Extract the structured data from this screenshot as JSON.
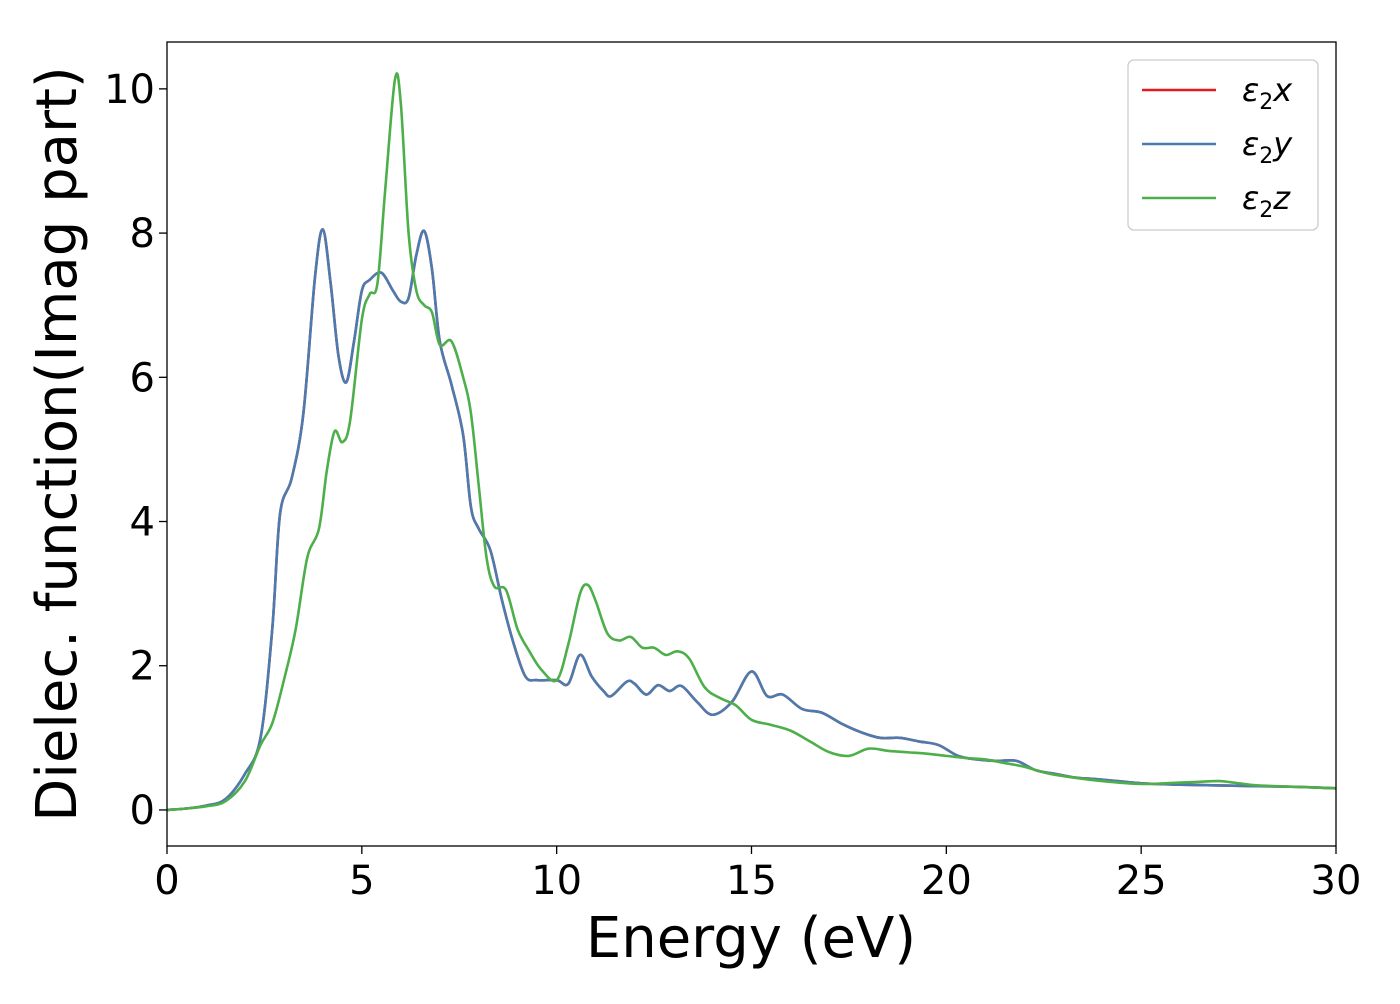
{
  "chart_data": {
    "type": "line",
    "xlabel": "Energy (eV)",
    "ylabel": "Dielec. function(Imag part)",
    "xlim": [
      0,
      30
    ],
    "ylim": [
      -0.5,
      10.65
    ],
    "xticks": [
      0,
      5,
      10,
      15,
      20,
      25,
      30
    ],
    "yticks": [
      0,
      2,
      4,
      6,
      8,
      10
    ],
    "grid": false,
    "legend_position": "top-right",
    "series": [
      {
        "name": "ε2x",
        "legend_main": "ε",
        "legend_sub": "2",
        "legend_suffix": "x",
        "color": "#e41a1c",
        "points": [
          [
            0,
            0
          ],
          [
            0.5,
            0.02
          ],
          [
            1.0,
            0.06
          ],
          [
            1.5,
            0.15
          ],
          [
            2.0,
            0.5
          ],
          [
            2.4,
            1.0
          ],
          [
            2.7,
            2.5
          ],
          [
            2.9,
            4.1
          ],
          [
            3.2,
            4.6
          ],
          [
            3.5,
            5.5
          ],
          [
            3.8,
            7.4
          ],
          [
            4.0,
            8.05
          ],
          [
            4.2,
            7.3
          ],
          [
            4.4,
            6.3
          ],
          [
            4.6,
            5.93
          ],
          [
            4.8,
            6.5
          ],
          [
            5.0,
            7.2
          ],
          [
            5.2,
            7.35
          ],
          [
            5.5,
            7.45
          ],
          [
            5.8,
            7.2
          ],
          [
            6.0,
            7.05
          ],
          [
            6.2,
            7.1
          ],
          [
            6.4,
            7.7
          ],
          [
            6.6,
            8.03
          ],
          [
            6.8,
            7.5
          ],
          [
            7.0,
            6.5
          ],
          [
            7.3,
            5.9
          ],
          [
            7.6,
            5.2
          ],
          [
            7.8,
            4.2
          ],
          [
            8.0,
            3.9
          ],
          [
            8.3,
            3.6
          ],
          [
            8.6,
            2.9
          ],
          [
            8.9,
            2.3
          ],
          [
            9.2,
            1.85
          ],
          [
            9.5,
            1.8
          ],
          [
            10.0,
            1.8
          ],
          [
            10.3,
            1.75
          ],
          [
            10.6,
            2.15
          ],
          [
            10.9,
            1.85
          ],
          [
            11.2,
            1.65
          ],
          [
            11.4,
            1.58
          ],
          [
            11.8,
            1.78
          ],
          [
            12.0,
            1.75
          ],
          [
            12.3,
            1.6
          ],
          [
            12.6,
            1.73
          ],
          [
            12.9,
            1.65
          ],
          [
            13.2,
            1.72
          ],
          [
            13.6,
            1.5
          ],
          [
            14.0,
            1.32
          ],
          [
            14.5,
            1.5
          ],
          [
            15.0,
            1.92
          ],
          [
            15.4,
            1.58
          ],
          [
            15.8,
            1.6
          ],
          [
            16.3,
            1.4
          ],
          [
            16.8,
            1.35
          ],
          [
            17.3,
            1.2
          ],
          [
            17.8,
            1.08
          ],
          [
            18.3,
            1.0
          ],
          [
            18.8,
            1.0
          ],
          [
            19.3,
            0.95
          ],
          [
            19.8,
            0.9
          ],
          [
            20.3,
            0.75
          ],
          [
            20.8,
            0.7
          ],
          [
            21.3,
            0.68
          ],
          [
            21.8,
            0.68
          ],
          [
            22.3,
            0.55
          ],
          [
            22.8,
            0.5
          ],
          [
            23.3,
            0.45
          ],
          [
            24.0,
            0.42
          ],
          [
            25.0,
            0.37
          ],
          [
            26.0,
            0.35
          ],
          [
            27.0,
            0.34
          ],
          [
            28.0,
            0.33
          ],
          [
            29.0,
            0.32
          ],
          [
            30.0,
            0.3
          ]
        ]
      },
      {
        "name": "ε2y",
        "legend_main": "ε",
        "legend_sub": "2",
        "legend_suffix": "y",
        "color": "#4a7cb0",
        "points": [
          [
            0,
            0
          ],
          [
            0.5,
            0.02
          ],
          [
            1.0,
            0.06
          ],
          [
            1.5,
            0.15
          ],
          [
            2.0,
            0.5
          ],
          [
            2.4,
            1.0
          ],
          [
            2.7,
            2.5
          ],
          [
            2.9,
            4.1
          ],
          [
            3.2,
            4.6
          ],
          [
            3.5,
            5.5
          ],
          [
            3.8,
            7.4
          ],
          [
            4.0,
            8.05
          ],
          [
            4.2,
            7.3
          ],
          [
            4.4,
            6.3
          ],
          [
            4.6,
            5.93
          ],
          [
            4.8,
            6.5
          ],
          [
            5.0,
            7.2
          ],
          [
            5.2,
            7.35
          ],
          [
            5.5,
            7.45
          ],
          [
            5.8,
            7.2
          ],
          [
            6.0,
            7.05
          ],
          [
            6.2,
            7.1
          ],
          [
            6.4,
            7.7
          ],
          [
            6.6,
            8.03
          ],
          [
            6.8,
            7.5
          ],
          [
            7.0,
            6.5
          ],
          [
            7.3,
            5.9
          ],
          [
            7.6,
            5.2
          ],
          [
            7.8,
            4.2
          ],
          [
            8.0,
            3.9
          ],
          [
            8.3,
            3.6
          ],
          [
            8.6,
            2.9
          ],
          [
            8.9,
            2.3
          ],
          [
            9.2,
            1.85
          ],
          [
            9.5,
            1.8
          ],
          [
            10.0,
            1.8
          ],
          [
            10.3,
            1.75
          ],
          [
            10.6,
            2.15
          ],
          [
            10.9,
            1.85
          ],
          [
            11.2,
            1.65
          ],
          [
            11.4,
            1.58
          ],
          [
            11.8,
            1.78
          ],
          [
            12.0,
            1.75
          ],
          [
            12.3,
            1.6
          ],
          [
            12.6,
            1.73
          ],
          [
            12.9,
            1.65
          ],
          [
            13.2,
            1.72
          ],
          [
            13.6,
            1.5
          ],
          [
            14.0,
            1.32
          ],
          [
            14.5,
            1.5
          ],
          [
            15.0,
            1.92
          ],
          [
            15.4,
            1.58
          ],
          [
            15.8,
            1.6
          ],
          [
            16.3,
            1.4
          ],
          [
            16.8,
            1.35
          ],
          [
            17.3,
            1.2
          ],
          [
            17.8,
            1.08
          ],
          [
            18.3,
            1.0
          ],
          [
            18.8,
            1.0
          ],
          [
            19.3,
            0.95
          ],
          [
            19.8,
            0.9
          ],
          [
            20.3,
            0.75
          ],
          [
            20.8,
            0.7
          ],
          [
            21.3,
            0.68
          ],
          [
            21.8,
            0.68
          ],
          [
            22.3,
            0.55
          ],
          [
            22.8,
            0.5
          ],
          [
            23.3,
            0.45
          ],
          [
            24.0,
            0.42
          ],
          [
            25.0,
            0.37
          ],
          [
            26.0,
            0.35
          ],
          [
            27.0,
            0.34
          ],
          [
            28.0,
            0.33
          ],
          [
            29.0,
            0.32
          ],
          [
            30.0,
            0.3
          ]
        ]
      },
      {
        "name": "ε2z",
        "legend_main": "ε",
        "legend_sub": "2",
        "legend_suffix": "z",
        "color": "#4daf4a",
        "points": [
          [
            0,
            0
          ],
          [
            0.5,
            0.02
          ],
          [
            1.0,
            0.05
          ],
          [
            1.5,
            0.12
          ],
          [
            2.0,
            0.4
          ],
          [
            2.4,
            0.9
          ],
          [
            2.7,
            1.2
          ],
          [
            3.0,
            1.8
          ],
          [
            3.3,
            2.5
          ],
          [
            3.6,
            3.5
          ],
          [
            3.9,
            3.9
          ],
          [
            4.1,
            4.7
          ],
          [
            4.3,
            5.25
          ],
          [
            4.5,
            5.1
          ],
          [
            4.7,
            5.4
          ],
          [
            5.0,
            6.8
          ],
          [
            5.2,
            7.15
          ],
          [
            5.4,
            7.3
          ],
          [
            5.6,
            8.6
          ],
          [
            5.85,
            10.13
          ],
          [
            6.0,
            9.8
          ],
          [
            6.2,
            8.0
          ],
          [
            6.4,
            7.2
          ],
          [
            6.6,
            7.0
          ],
          [
            6.8,
            6.9
          ],
          [
            7.0,
            6.45
          ],
          [
            7.3,
            6.5
          ],
          [
            7.6,
            6.0
          ],
          [
            7.8,
            5.5
          ],
          [
            8.0,
            4.5
          ],
          [
            8.2,
            3.5
          ],
          [
            8.4,
            3.1
          ],
          [
            8.7,
            3.05
          ],
          [
            9.0,
            2.5
          ],
          [
            9.3,
            2.2
          ],
          [
            9.6,
            1.95
          ],
          [
            10.0,
            1.8
          ],
          [
            10.3,
            2.3
          ],
          [
            10.6,
            3.0
          ],
          [
            10.8,
            3.12
          ],
          [
            11.0,
            2.9
          ],
          [
            11.3,
            2.45
          ],
          [
            11.6,
            2.35
          ],
          [
            11.9,
            2.4
          ],
          [
            12.2,
            2.25
          ],
          [
            12.5,
            2.25
          ],
          [
            12.8,
            2.15
          ],
          [
            13.1,
            2.2
          ],
          [
            13.4,
            2.1
          ],
          [
            13.8,
            1.7
          ],
          [
            14.2,
            1.55
          ],
          [
            14.6,
            1.45
          ],
          [
            15.0,
            1.25
          ],
          [
            15.5,
            1.18
          ],
          [
            16.0,
            1.1
          ],
          [
            16.5,
            0.95
          ],
          [
            17.0,
            0.8
          ],
          [
            17.5,
            0.75
          ],
          [
            18.0,
            0.85
          ],
          [
            18.5,
            0.82
          ],
          [
            19.0,
            0.8
          ],
          [
            19.5,
            0.78
          ],
          [
            20.0,
            0.75
          ],
          [
            20.5,
            0.72
          ],
          [
            21.0,
            0.7
          ],
          [
            21.5,
            0.65
          ],
          [
            22.0,
            0.6
          ],
          [
            22.5,
            0.52
          ],
          [
            23.0,
            0.47
          ],
          [
            24.0,
            0.4
          ],
          [
            25.0,
            0.36
          ],
          [
            26.0,
            0.38
          ],
          [
            26.5,
            0.39
          ],
          [
            27.0,
            0.4
          ],
          [
            27.5,
            0.37
          ],
          [
            28.0,
            0.34
          ],
          [
            29.0,
            0.32
          ],
          [
            30.0,
            0.3
          ]
        ]
      }
    ]
  }
}
